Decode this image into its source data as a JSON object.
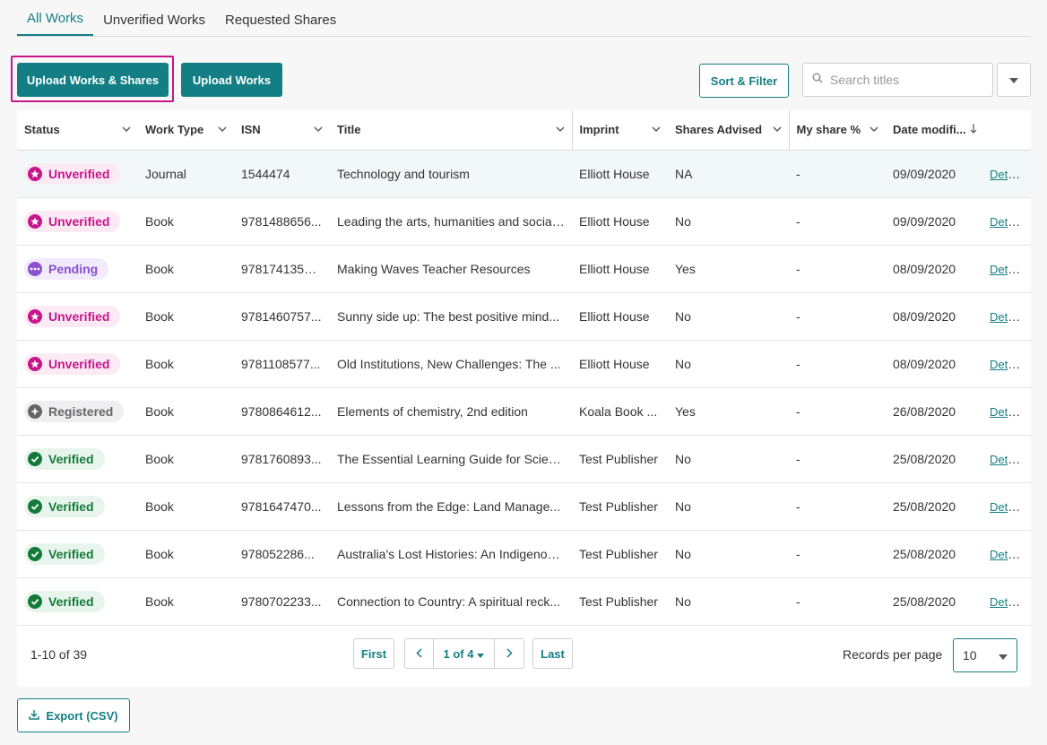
{
  "tabs": [
    {
      "label": "All Works",
      "active": true
    },
    {
      "label": "Unverified Works",
      "active": false
    },
    {
      "label": "Requested Shares",
      "active": false
    }
  ],
  "toolbar": {
    "upload_works_shares_label": "Upload Works & Shares",
    "upload_works_label": "Upload Works",
    "sort_filter_label": "Sort & Filter",
    "search_placeholder": "Search titles",
    "search_value": ""
  },
  "table": {
    "headers": {
      "status": "Status",
      "work_type": "Work Type",
      "isn": "ISN",
      "title": "Title",
      "imprint": "Imprint",
      "shares_advised": "Shares Advised",
      "my_share": "My share %",
      "date_modified": "Date modifi..."
    },
    "details_label": "Details",
    "rows": [
      {
        "status": "Unverified",
        "status_type": "unverified",
        "work_type": "Journal",
        "isn": "1544474",
        "title": "Technology and tourism",
        "imprint": "Elliott House",
        "shares_advised": "NA",
        "my_share": "-",
        "date_modified": "09/09/2020"
      },
      {
        "status": "Unverified",
        "status_type": "unverified",
        "work_type": "Book",
        "isn": "9781488656...",
        "title": "Leading the arts, humanities and social...",
        "imprint": "Elliott House",
        "shares_advised": "No",
        "my_share": "-",
        "date_modified": "09/09/2020"
      },
      {
        "status": "Pending",
        "status_type": "pending",
        "work_type": "Book",
        "isn": "97817413535...",
        "title": "Making Waves Teacher Resources",
        "imprint": "Elliott House",
        "shares_advised": "Yes",
        "my_share": "-",
        "date_modified": "08/09/2020"
      },
      {
        "status": "Unverified",
        "status_type": "unverified",
        "work_type": "Book",
        "isn": "9781460757...",
        "title": "Sunny side up: The best positive mind...",
        "imprint": "Elliott House",
        "shares_advised": "No",
        "my_share": "-",
        "date_modified": "08/09/2020"
      },
      {
        "status": "Unverified",
        "status_type": "unverified",
        "work_type": "Book",
        "isn": "9781108577...",
        "title": "Old Institutions, New Challenges: The ...",
        "imprint": "Elliott House",
        "shares_advised": "No",
        "my_share": "-",
        "date_modified": "08/09/2020"
      },
      {
        "status": "Registered",
        "status_type": "registered",
        "work_type": "Book",
        "isn": "9780864612...",
        "title": "Elements of chemistry, 2nd edition",
        "imprint": "Koala Book ...",
        "shares_advised": "Yes",
        "my_share": "-",
        "date_modified": "26/08/2020"
      },
      {
        "status": "Verified",
        "status_type": "verified",
        "work_type": "Book",
        "isn": "9781760893...",
        "title": "The Essential Learning Guide for Scien...",
        "imprint": "Test Publisher",
        "shares_advised": "No",
        "my_share": "-",
        "date_modified": "25/08/2020"
      },
      {
        "status": "Verified",
        "status_type": "verified",
        "work_type": "Book",
        "isn": "9781647470...",
        "title": "Lessons from the Edge: Land Manage...",
        "imprint": "Test Publisher",
        "shares_advised": "No",
        "my_share": "-",
        "date_modified": "25/08/2020"
      },
      {
        "status": "Verified",
        "status_type": "verified",
        "work_type": "Book",
        "isn": "978052286...",
        "title": "Australia's Lost Histories: An Indigenou...",
        "imprint": "Test Publisher",
        "shares_advised": "No",
        "my_share": "-",
        "date_modified": "25/08/2020"
      },
      {
        "status": "Verified",
        "status_type": "verified",
        "work_type": "Book",
        "isn": "9780702233...",
        "title": "Connection to Country: A spiritual reck...",
        "imprint": "Test Publisher",
        "shares_advised": "No",
        "my_share": "-",
        "date_modified": "25/08/2020"
      }
    ]
  },
  "pagination": {
    "range_label": "1-10 of 39",
    "first_label": "First",
    "current_page_label": "1 of 4",
    "last_label": "Last",
    "records_per_page_label": "Records per page",
    "records_per_page_value": "10"
  },
  "export": {
    "label": "Export (CSV)"
  },
  "colors": {
    "accent": "#137f85",
    "highlight": "#c7158a",
    "unverified": "#c7158a",
    "pending": "#8b4fd1",
    "registered": "#666666",
    "verified": "#137a3a"
  },
  "icons": {
    "unverified": "star-circle-icon",
    "pending": "dots-circle-icon",
    "registered": "plus-circle-icon",
    "verified": "check-circle-icon"
  }
}
